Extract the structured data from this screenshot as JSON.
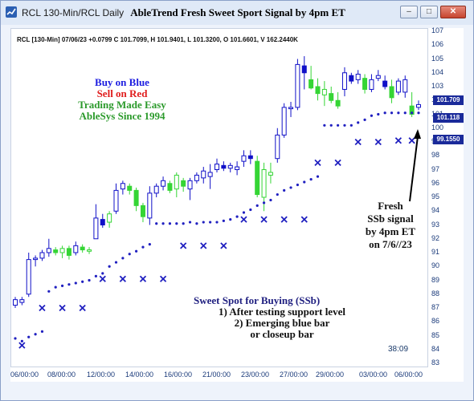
{
  "window": {
    "title": "RCL 130-Min/RCL Daily",
    "chart_title": "AbleTrend Fresh Sweet Sport Signal by 4pm ET",
    "buttons": {
      "minimize": "–",
      "maximize": "□",
      "close": "✕"
    },
    "icon": "line-chart-icon"
  },
  "ohlc_header": "RCL [130-Min] 07/06/23 +0.0799 C 101.7099, H 101.9401, L 101.3200, O 101.6601, V 162.2440K",
  "legend": {
    "buy": "Buy on Blue",
    "sell": "Sell on Red",
    "made_easy": "Trading Made Easy",
    "since": "AbleSys Since 1994"
  },
  "annotation": {
    "line1": "Fresh",
    "line2": "SSb signal",
    "line3": "by 4pm ET",
    "line4": "on 7/6//23"
  },
  "sweet_spot": {
    "title": "Sweet Spot for Buying (SSb)",
    "line1": "1) After testing support level",
    "line2": "2) Emerging blue bar",
    "line3": "or closeup bar"
  },
  "timer": "38:09",
  "price_tags": {
    "last": "101.709",
    "stop": "101.118",
    "lower": "99.1550"
  },
  "colors": {
    "blue_bar": "#1010c8",
    "green_bar": "#35d535",
    "support": "#2020c0",
    "price_tag": "#1a2a9a"
  },
  "chart_data": {
    "type": "ohlc",
    "y_ticks": [
      107,
      106,
      105,
      104,
      103,
      102,
      101,
      100,
      99,
      98,
      97,
      96,
      95,
      94,
      93,
      92,
      91,
      90,
      89,
      88,
      87,
      86,
      85,
      84,
      83
    ],
    "ylim": [
      83,
      107
    ],
    "x_ticks": [
      "06/00:00",
      "08/00:00",
      "12/00:00",
      "14/00:00",
      "16/00:00",
      "21/00:00",
      "23/00:00",
      "27/00:00",
      "29/00:00",
      "03/00:00",
      "06/00:00"
    ],
    "bars": [
      {
        "o": 87.2,
        "h": 87.8,
        "l": 87.0,
        "c": 87.6,
        "col": "blue"
      },
      {
        "o": 87.4,
        "h": 87.8,
        "l": 87.2,
        "c": 87.6,
        "col": "blue"
      },
      {
        "o": 88.0,
        "h": 91.0,
        "l": 87.8,
        "c": 90.5,
        "col": "blue"
      },
      {
        "o": 90.5,
        "h": 90.8,
        "l": 90.0,
        "c": 90.6,
        "col": "blue"
      },
      {
        "o": 90.6,
        "h": 91.2,
        "l": 90.4,
        "c": 91.0,
        "col": "blue"
      },
      {
        "o": 91.0,
        "h": 92.0,
        "l": 90.7,
        "c": 91.3,
        "col": "blue"
      },
      {
        "o": 91.2,
        "h": 91.4,
        "l": 90.8,
        "c": 91.0,
        "col": "green"
      },
      {
        "o": 91.0,
        "h": 91.5,
        "l": 90.6,
        "c": 91.3,
        "col": "green"
      },
      {
        "o": 91.3,
        "h": 91.5,
        "l": 90.5,
        "c": 90.8,
        "col": "green"
      },
      {
        "o": 91.0,
        "h": 91.8,
        "l": 90.8,
        "c": 91.5,
        "col": "blue"
      },
      {
        "o": 91.4,
        "h": 91.6,
        "l": 91.0,
        "c": 91.2,
        "col": "green"
      },
      {
        "o": 91.1,
        "h": 91.4,
        "l": 90.9,
        "c": 91.2,
        "col": "green"
      },
      {
        "o": 92.0,
        "h": 94.5,
        "l": 92.0,
        "c": 93.5,
        "col": "blue"
      },
      {
        "o": 93.4,
        "h": 93.8,
        "l": 92.8,
        "c": 93.0,
        "col": "blue"
      },
      {
        "o": 93.2,
        "h": 94.0,
        "l": 92.8,
        "c": 93.8,
        "col": "green"
      },
      {
        "o": 94.0,
        "h": 96.0,
        "l": 93.8,
        "c": 95.5,
        "col": "blue"
      },
      {
        "o": 95.6,
        "h": 96.2,
        "l": 95.2,
        "c": 96.0,
        "col": "blue"
      },
      {
        "o": 95.8,
        "h": 96.0,
        "l": 95.2,
        "c": 95.5,
        "col": "green"
      },
      {
        "o": 95.5,
        "h": 95.7,
        "l": 94.0,
        "c": 94.4,
        "col": "green"
      },
      {
        "o": 94.4,
        "h": 94.6,
        "l": 93.2,
        "c": 93.6,
        "col": "green"
      },
      {
        "o": 93.5,
        "h": 95.8,
        "l": 93.0,
        "c": 95.3,
        "col": "blue"
      },
      {
        "o": 95.3,
        "h": 96.0,
        "l": 95.0,
        "c": 95.8,
        "col": "blue"
      },
      {
        "o": 95.8,
        "h": 96.5,
        "l": 95.5,
        "c": 96.2,
        "col": "blue"
      },
      {
        "o": 96.0,
        "h": 96.2,
        "l": 95.3,
        "c": 95.5,
        "col": "green"
      },
      {
        "o": 95.6,
        "h": 96.8,
        "l": 95.0,
        "c": 96.6,
        "col": "green"
      },
      {
        "o": 96.2,
        "h": 96.4,
        "l": 95.4,
        "c": 95.8,
        "col": "green"
      },
      {
        "o": 95.6,
        "h": 96.4,
        "l": 94.8,
        "c": 96.2,
        "col": "blue"
      },
      {
        "o": 96.2,
        "h": 96.8,
        "l": 96.0,
        "c": 96.6,
        "col": "blue"
      },
      {
        "o": 96.4,
        "h": 97.2,
        "l": 96.0,
        "c": 96.9,
        "col": "blue"
      },
      {
        "o": 96.5,
        "h": 97.4,
        "l": 95.6,
        "c": 96.8,
        "col": "blue"
      },
      {
        "o": 97.0,
        "h": 97.8,
        "l": 96.8,
        "c": 97.4,
        "col": "blue"
      },
      {
        "o": 97.3,
        "h": 97.6,
        "l": 96.9,
        "c": 97.1,
        "col": "blue"
      },
      {
        "o": 97.1,
        "h": 97.5,
        "l": 96.8,
        "c": 97.3,
        "col": "blue"
      },
      {
        "o": 97.0,
        "h": 97.6,
        "l": 96.6,
        "c": 97.2,
        "col": "blue"
      },
      {
        "o": 97.6,
        "h": 98.4,
        "l": 97.2,
        "c": 98.0,
        "col": "blue"
      },
      {
        "o": 98.0,
        "h": 98.4,
        "l": 97.4,
        "c": 97.8,
        "col": "blue"
      },
      {
        "o": 97.6,
        "h": 98.0,
        "l": 95.0,
        "c": 95.2,
        "col": "green"
      },
      {
        "o": 95.0,
        "h": 97.5,
        "l": 94.0,
        "c": 97.0,
        "col": "green"
      },
      {
        "o": 96.6,
        "h": 97.5,
        "l": 96.0,
        "c": 96.8,
        "col": "green"
      },
      {
        "o": 97.8,
        "h": 100.0,
        "l": 97.5,
        "c": 99.5,
        "col": "blue"
      },
      {
        "o": 99.5,
        "h": 101.8,
        "l": 99.3,
        "c": 101.5,
        "col": "blue"
      },
      {
        "o": 101.4,
        "h": 101.9,
        "l": 100.8,
        "c": 101.5,
        "col": "blue"
      },
      {
        "o": 101.5,
        "h": 105.0,
        "l": 101.3,
        "c": 104.6,
        "col": "blue"
      },
      {
        "o": 104.5,
        "h": 105.2,
        "l": 102.8,
        "c": 104.0,
        "col": "blue"
      },
      {
        "o": 103.5,
        "h": 104.5,
        "l": 102.8,
        "c": 102.9,
        "col": "green"
      },
      {
        "o": 103.0,
        "h": 103.6,
        "l": 102.0,
        "c": 102.5,
        "col": "green"
      },
      {
        "o": 102.4,
        "h": 103.4,
        "l": 101.6,
        "c": 102.8,
        "col": "green"
      },
      {
        "o": 102.5,
        "h": 103.0,
        "l": 101.8,
        "c": 102.0,
        "col": "green"
      },
      {
        "o": 102.0,
        "h": 102.6,
        "l": 101.4,
        "c": 101.6,
        "col": "green"
      },
      {
        "o": 102.8,
        "h": 104.4,
        "l": 102.3,
        "c": 104.0,
        "col": "blue"
      },
      {
        "o": 103.8,
        "h": 104.0,
        "l": 103.2,
        "c": 103.4,
        "col": "blue"
      },
      {
        "o": 103.5,
        "h": 104.2,
        "l": 103.2,
        "c": 103.9,
        "col": "blue"
      },
      {
        "o": 103.6,
        "h": 103.9,
        "l": 102.5,
        "c": 102.8,
        "col": "green"
      },
      {
        "o": 102.8,
        "h": 103.9,
        "l": 102.6,
        "c": 103.5,
        "col": "blue"
      },
      {
        "o": 103.6,
        "h": 104.2,
        "l": 103.4,
        "c": 103.8,
        "col": "blue"
      },
      {
        "o": 103.4,
        "h": 103.8,
        "l": 102.8,
        "c": 103.0,
        "col": "blue"
      },
      {
        "o": 103.0,
        "h": 103.5,
        "l": 101.8,
        "c": 102.2,
        "col": "green"
      },
      {
        "o": 102.6,
        "h": 103.6,
        "l": 102.4,
        "c": 103.4,
        "col": "blue"
      },
      {
        "o": 102.6,
        "h": 103.8,
        "l": 102.2,
        "c": 103.5,
        "col": "blue"
      },
      {
        "o": 101.6,
        "h": 102.6,
        "l": 100.8,
        "c": 101.0,
        "col": "green"
      },
      {
        "o": 101.5,
        "h": 102.0,
        "l": 101.3,
        "c": 101.7,
        "col": "blue"
      }
    ],
    "support_dots": [
      84.8,
      84.6,
      84.9,
      85.1,
      85.3,
      88.2,
      88.5,
      88.6,
      88.7,
      88.8,
      88.9,
      89.0,
      89.3,
      89.5,
      90.0,
      90.3,
      90.6,
      90.9,
      91.1,
      91.4,
      91.6,
      93.1,
      93.1,
      93.1,
      93.1,
      93.1,
      93.2,
      93.1,
      93.2,
      93.2,
      93.2,
      93.3,
      93.4,
      93.6,
      93.9,
      94.1,
      94.4,
      94.6,
      94.8,
      95.2,
      95.5,
      95.7,
      95.9,
      96.1,
      96.3,
      96.5,
      100.2,
      100.2,
      100.2,
      100.2,
      100.2,
      100.4,
      100.6,
      100.9,
      101.0,
      101.1,
      101.1,
      101.1,
      101.1,
      101.1,
      101.1
    ],
    "x_markers": [
      {
        "i": 1,
        "v": 84.3
      },
      {
        "i": 4,
        "v": 87.0
      },
      {
        "i": 7,
        "v": 87.0
      },
      {
        "i": 10,
        "v": 87.0
      },
      {
        "i": 13,
        "v": 89.1
      },
      {
        "i": 16,
        "v": 89.1
      },
      {
        "i": 19,
        "v": 89.1
      },
      {
        "i": 22,
        "v": 89.1
      },
      {
        "i": 25,
        "v": 91.5
      },
      {
        "i": 28,
        "v": 91.5
      },
      {
        "i": 31,
        "v": 91.5
      },
      {
        "i": 34,
        "v": 93.4
      },
      {
        "i": 37,
        "v": 93.4
      },
      {
        "i": 40,
        "v": 93.4
      },
      {
        "i": 43,
        "v": 93.4
      },
      {
        "i": 45,
        "v": 97.5
      },
      {
        "i": 48,
        "v": 97.5
      },
      {
        "i": 51,
        "v": 99.0
      },
      {
        "i": 54,
        "v": 99.0
      },
      {
        "i": 57,
        "v": 99.1
      },
      {
        "i": 59,
        "v": 99.1
      }
    ]
  }
}
